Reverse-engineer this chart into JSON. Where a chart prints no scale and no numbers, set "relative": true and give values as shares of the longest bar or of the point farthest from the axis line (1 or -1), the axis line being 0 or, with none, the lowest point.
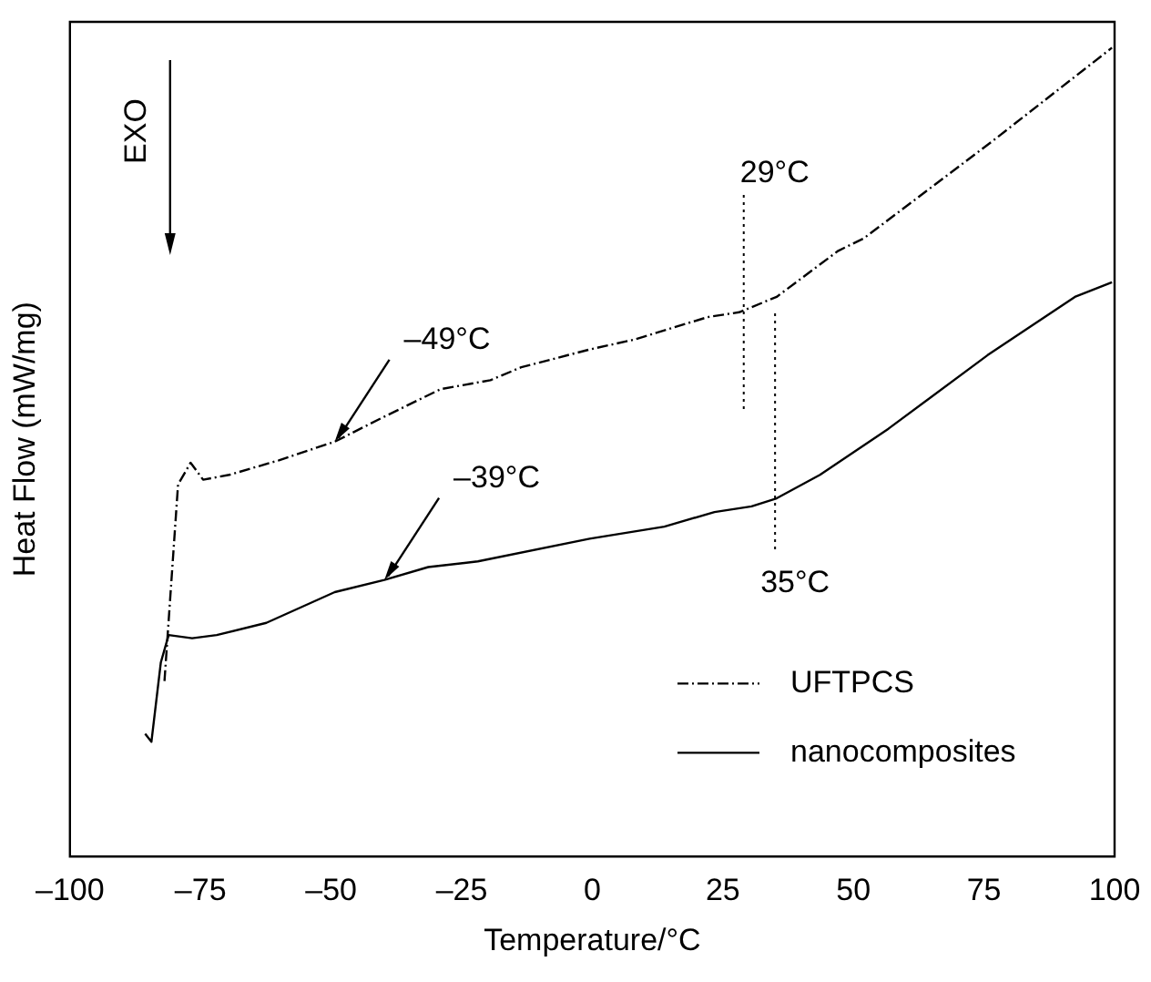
{
  "chart_data": {
    "type": "line",
    "xlabel": "Temperature/°C",
    "ylabel": "Heat Flow (mW/mg)",
    "relative": true,
    "xlim": [
      -100,
      100
    ],
    "xticks": [
      {
        "value": -100,
        "label": "–100"
      },
      {
        "value": -75,
        "label": "–75"
      },
      {
        "value": -50,
        "label": "–50"
      },
      {
        "value": -25,
        "label": "–25"
      },
      0,
      25,
      50,
      75,
      100
    ],
    "grid": false,
    "legend": "bottom right",
    "marker": "none",
    "series": [
      {
        "name": "UFTPCS",
        "color": "#000000",
        "line_style": "dashed",
        "x": [
          -81.9,
          -79.3,
          -76.9,
          -74.5,
          -69.5,
          -60,
          -49.3,
          -39.8,
          -29,
          -19.5,
          -13.6,
          -0.5,
          7.9,
          22.1,
          28.1,
          35.3,
          47.1,
          51.9,
          59.1,
          76.9,
          99.5
        ],
        "values": [
          0.217,
          0.46,
          0.487,
          0.466,
          0.472,
          0.49,
          0.513,
          0.544,
          0.578,
          0.589,
          0.605,
          0.627,
          0.639,
          0.667,
          0.673,
          0.692,
          0.749,
          0.764,
          0.799,
          0.886,
          1.0
        ]
      },
      {
        "name": "nanocomposites",
        "color": "#000000",
        "line_style": "solid",
        "x": [
          -85.6,
          -84.4,
          -82.6,
          -81.1,
          -76.6,
          -71.9,
          -62.4,
          -49.3,
          -39.8,
          -31.4,
          -21.9,
          -0.5,
          13.8,
          23.4,
          30.5,
          35.3,
          43.6,
          56.7,
          75.7,
          92.4,
          99.5
        ],
        "values": [
          0.152,
          0.142,
          0.24,
          0.274,
          0.27,
          0.274,
          0.289,
          0.327,
          0.342,
          0.358,
          0.365,
          0.393,
          0.408,
          0.426,
          0.433,
          0.443,
          0.472,
          0.529,
          0.62,
          0.692,
          0.71
        ]
      }
    ],
    "ref_lines": [
      {
        "axis": "x",
        "value": 29,
        "label": "29°C",
        "line_style": "dotted"
      },
      {
        "axis": "x",
        "value": 35,
        "label": "35°C",
        "line_style": "dotted"
      }
    ],
    "annotations": [
      "EXO",
      {
        "text": "–49°C",
        "x": -49.3,
        "y": 0.513
      },
      {
        "text": "–39°C",
        "x": -39.8,
        "y": 0.342
      }
    ]
  }
}
